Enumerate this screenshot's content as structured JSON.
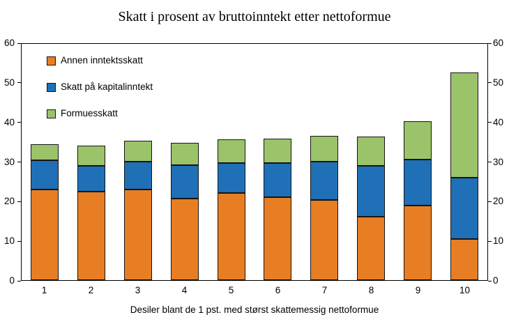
{
  "chart_data": {
    "type": "bar",
    "stacked": true,
    "title": "Skatt i prosent av bruttoinntekt etter nettoformue",
    "xlabel": "Desiler blant de 1 pst. med størst skattemessig nettoformue",
    "ylabel": "",
    "categories": [
      "1",
      "2",
      "3",
      "4",
      "5",
      "6",
      "7",
      "8",
      "9",
      "10"
    ],
    "series": [
      {
        "name": "Annen inntektsskatt",
        "color": "#E87E23",
        "values": [
          23.0,
          22.4,
          23.0,
          20.7,
          22.1,
          21.1,
          20.4,
          16.1,
          19.0,
          10.4
        ]
      },
      {
        "name": "Skatt på kapitalinntekt",
        "color": "#1F70B6",
        "values": [
          7.4,
          6.7,
          7.1,
          8.5,
          7.7,
          8.6,
          9.7,
          12.9,
          11.6,
          15.7
        ]
      },
      {
        "name": "Formuesskatt",
        "color": "#9BC36A",
        "values": [
          4.2,
          5.0,
          5.3,
          5.7,
          6.0,
          6.3,
          6.6,
          7.5,
          9.8,
          26.7
        ]
      }
    ],
    "totals": [
      34.6,
      34.1,
      35.4,
      34.9,
      35.8,
      36.0,
      36.7,
      36.5,
      40.4,
      52.8
    ],
    "ylim": [
      0,
      60
    ],
    "yticks": [
      0,
      10,
      20,
      30,
      40,
      50,
      60
    ],
    "grid": false,
    "legend_position": "upper-left-inside",
    "axis_color": "#000000",
    "background_color": "#ffffff"
  }
}
